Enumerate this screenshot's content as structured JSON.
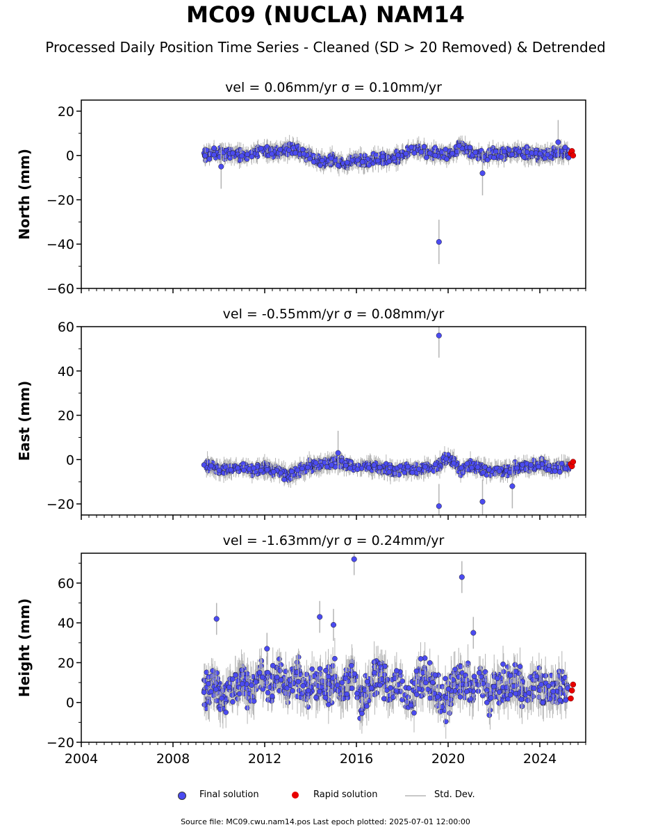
{
  "header": {
    "title": "MC09 (NUCLA) NAM14",
    "subtitle": "Processed Daily Position Time Series - Cleaned (SD > 20 Removed) & Detrended"
  },
  "legend": {
    "final": "Final solution",
    "rapid": "Rapid solution",
    "std": "Std. Dev."
  },
  "footer": {
    "source": "Source file: MC09.cwu.nam14.pos  Last epoch plotted: 2025-07-01 12:00:00"
  },
  "colors": {
    "final": "#4b4bf0",
    "rapid": "#e80000",
    "std": "#b4b4b4"
  },
  "chart_data": [
    {
      "type": "scatter",
      "panel": "north",
      "title": "vel = 0.06mm/yr   σ = 0.10mm/yr",
      "ylabel": "North (mm)",
      "xlim": [
        2004,
        2026
      ],
      "ylim": [
        -60,
        25
      ],
      "yticks": [
        20,
        0,
        -20,
        -40,
        -60
      ],
      "ytick_labels": [
        "20",
        "0",
        "−20",
        "−40",
        "−60"
      ],
      "series": [
        {
          "name": "Final solution",
          "x": [
            2009.4,
            2010.0,
            2010.5,
            2011.0,
            2011.5,
            2012.0,
            2012.5,
            2013.0,
            2013.5,
            2014.0,
            2014.5,
            2015.0,
            2015.5,
            2016.0,
            2016.5,
            2017.0,
            2017.5,
            2018.0,
            2018.5,
            2019.0,
            2019.5,
            2020.0,
            2020.5,
            2021.0,
            2021.5,
            2022.0,
            2022.5,
            2023.0,
            2023.5,
            2024.0,
            2024.5,
            2025.0,
            2010.1,
            2019.6,
            2021.5,
            2024.8
          ],
          "y": [
            0,
            1,
            1,
            0,
            1,
            2,
            1,
            3,
            2,
            -1,
            -3,
            -2,
            -4,
            -2,
            -3,
            -1,
            -2,
            0,
            3,
            2,
            1,
            0,
            4,
            2,
            0,
            1,
            1,
            2,
            1,
            0,
            1,
            1,
            -5,
            -39,
            -8,
            6
          ]
        },
        {
          "name": "Rapid solution",
          "x": [
            2025.35,
            2025.4,
            2025.45
          ],
          "y": [
            1,
            2,
            0
          ]
        }
      ]
    },
    {
      "type": "scatter",
      "panel": "east",
      "title": "vel = -0.55mm/yr   σ = 0.08mm/yr",
      "ylabel": "East (mm)",
      "xlim": [
        2004,
        2026
      ],
      "ylim": [
        -25,
        60
      ],
      "yticks": [
        60,
        40,
        20,
        0,
        -20
      ],
      "ytick_labels": [
        "60",
        "40",
        "20",
        "0",
        "−20"
      ],
      "series": [
        {
          "name": "Final solution",
          "x": [
            2009.4,
            2010.0,
            2010.5,
            2011.0,
            2011.5,
            2012.0,
            2012.5,
            2013.0,
            2013.5,
            2014.0,
            2014.5,
            2015.0,
            2015.5,
            2016.0,
            2016.5,
            2017.0,
            2017.5,
            2018.0,
            2018.5,
            2019.0,
            2019.5,
            2020.0,
            2020.5,
            2021.0,
            2021.5,
            2022.0,
            2022.5,
            2023.0,
            2023.5,
            2024.0,
            2024.5,
            2025.0,
            2019.6,
            2019.6,
            2021.5,
            2022.8,
            2015.2
          ],
          "y": [
            -2,
            -5,
            -4,
            -3,
            -5,
            -4,
            -5,
            -7,
            -5,
            -3,
            -2,
            -1,
            -2,
            -3,
            -3,
            -4,
            -5,
            -4,
            -5,
            -4,
            -3,
            1,
            -5,
            -3,
            -4,
            -5,
            -5,
            -4,
            -3,
            -2,
            -4,
            -3,
            56,
            -21,
            -19,
            -12,
            3
          ]
        },
        {
          "name": "Rapid solution",
          "x": [
            2025.35,
            2025.4,
            2025.45
          ],
          "y": [
            -2,
            -3,
            -1
          ]
        }
      ]
    },
    {
      "type": "scatter",
      "panel": "height",
      "title": "vel = -1.63mm/yr   σ = 0.24mm/yr",
      "ylabel": "Height (mm)",
      "xlim": [
        2004,
        2026
      ],
      "ylim": [
        -20,
        75
      ],
      "yticks": [
        60,
        40,
        20,
        0,
        -20
      ],
      "ytick_labels": [
        "60",
        "40",
        "20",
        "0",
        "−20"
      ],
      "xticks": [
        2004,
        2008,
        2012,
        2016,
        2020,
        2024
      ],
      "xtick_labels": [
        "2004",
        "2008",
        "2012",
        "2016",
        "2020",
        "2024"
      ],
      "series": [
        {
          "name": "Final solution",
          "x": [
            2009.4,
            2009.8,
            2010.2,
            2010.6,
            2011.0,
            2011.4,
            2011.8,
            2012.2,
            2012.6,
            2013.0,
            2013.4,
            2013.8,
            2014.2,
            2014.6,
            2015.0,
            2015.4,
            2015.8,
            2016.2,
            2016.6,
            2017.0,
            2017.4,
            2017.8,
            2018.2,
            2018.6,
            2019.0,
            2019.4,
            2019.8,
            2020.2,
            2020.6,
            2021.0,
            2021.4,
            2021.8,
            2022.2,
            2022.6,
            2023.0,
            2023.4,
            2023.8,
            2024.2,
            2024.6,
            2025.0,
            2009.9,
            2015.9,
            2020.6,
            2014.4,
            2015.0,
            2012.1,
            2021.1
          ],
          "y": [
            5,
            10,
            0,
            8,
            12,
            3,
            15,
            6,
            12,
            9,
            14,
            5,
            10,
            7,
            12,
            4,
            18,
            0,
            10,
            14,
            5,
            12,
            -3,
            10,
            15,
            6,
            0,
            8,
            12,
            6,
            14,
            2,
            10,
            6,
            12,
            4,
            10,
            8,
            6,
            8,
            42,
            72,
            63,
            43,
            39,
            27,
            35
          ]
        },
        {
          "name": "Rapid solution",
          "x": [
            2025.35,
            2025.4,
            2025.45
          ],
          "y": [
            2,
            6,
            9
          ]
        }
      ]
    }
  ]
}
